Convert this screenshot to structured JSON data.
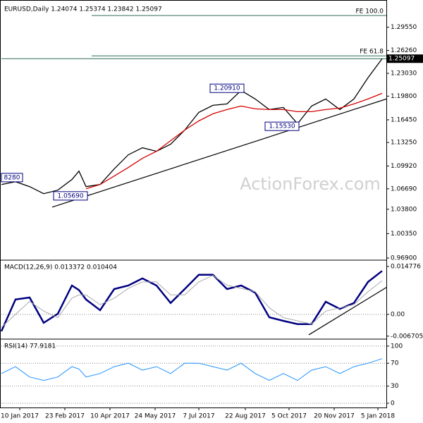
{
  "chart_data": [
    {
      "type": "line",
      "title": "EURUSD,Daily 1.24074 1.25374 1.23842 1.25097",
      "x": [
        0,
        10,
        20,
        30,
        40,
        50,
        55,
        60,
        70,
        80,
        90,
        100,
        110,
        120,
        130,
        140,
        150,
        160,
        170,
        180,
        190,
        200,
        210,
        220,
        230,
        240,
        250,
        260,
        270
      ],
      "xlim": [
        0,
        273
      ],
      "xticks": [
        {
          "value": 13,
          "label": "10 Jan 2017"
        },
        {
          "value": 45,
          "label": "23 Feb 2017"
        },
        {
          "value": 77,
          "label": "10 Apr 2017"
        },
        {
          "value": 109,
          "label": "24 May 2017"
        },
        {
          "value": 140,
          "label": "7 Jul 2017"
        },
        {
          "value": 173,
          "label": "22 Aug 2017"
        },
        {
          "value": 204,
          "label": "5 Oct 2017"
        },
        {
          "value": 236,
          "label": "20 Nov 2017"
        },
        {
          "value": 267,
          "label": "5 Jan 2018"
        }
      ],
      "series": [
        {
          "color": "#000000",
          "values": [
            1.073,
            1.077,
            1.07,
            1.06,
            1.065,
            1.08,
            1.092,
            1.07,
            1.073,
            1.095,
            1.115,
            1.125,
            1.12,
            1.13,
            1.15,
            1.175,
            1.185,
            1.187,
            1.206,
            1.194,
            1.179,
            1.182,
            1.159,
            1.184,
            1.194,
            1.179,
            1.194,
            1.224,
            1.251
          ]
        },
        {
          "color": "#d40000",
          "values": [
            null,
            null,
            null,
            null,
            null,
            null,
            null,
            1.067,
            1.073,
            1.085,
            1.097,
            1.11,
            1.12,
            1.135,
            1.15,
            1.163,
            1.173,
            1.179,
            1.184,
            1.18,
            1.179,
            1.179,
            1.176,
            1.176,
            1.179,
            1.181,
            1.187,
            1.194,
            1.202
          ]
        }
      ],
      "ylim": [
        0.967,
        1.33
      ],
      "yticks": [
        {
          "value": 1.2955,
          "label": "1.29550"
        },
        {
          "value": 1.2626,
          "label": "1.26260"
        },
        {
          "value": 1.2303,
          "label": "1.23030"
        },
        {
          "value": 1.198,
          "label": "1.19800"
        },
        {
          "value": 1.1645,
          "label": "1.16450"
        },
        {
          "value": 1.1325,
          "label": "1.13250"
        },
        {
          "value": 1.0992,
          "label": "1.09920"
        },
        {
          "value": 1.0669,
          "label": "1.06690"
        },
        {
          "value": 1.038,
          "label": "1.03800"
        },
        {
          "value": 1.0035,
          "label": "1.00350"
        },
        {
          "value": 0.969,
          "label": "0.96900"
        }
      ],
      "last_price": {
        "value": 1.25097,
        "label": "1.25097"
      },
      "levels": [
        {
          "text": "FE 100.0",
          "value": 1.312,
          "x": 64
        },
        {
          "text": "FE 61.8",
          "value": 1.255,
          "x": 64
        }
      ],
      "trendline": {
        "x": [
          36,
          273
        ],
        "y": [
          1.041,
          1.194
        ]
      },
      "annotations": [
        {
          "text": "8280",
          "x": 0,
          "y": 1.0828,
          "side": "right"
        },
        {
          "text": "1.05690",
          "x": 37,
          "y": 1.0569,
          "side": "right"
        },
        {
          "text": "1.20910",
          "x": 172,
          "y": 1.2091,
          "side": "left"
        },
        {
          "text": "1.15530",
          "x": 211,
          "y": 1.1553,
          "side": "left"
        }
      ],
      "watermark": "ActionForex.com"
    },
    {
      "type": "line",
      "title": "MACD(12,26,9) 0.013372 0.010404",
      "series": [
        {
          "color": "#000080",
          "width": 2.5,
          "values": [
            -0.0052,
            0.0046,
            0.0052,
            -0.0026,
            0.0002,
            0.0089,
            0.0075,
            0.0046,
            0.0013,
            0.0078,
            0.0089,
            0.0111,
            0.0089,
            0.0035,
            0.0078,
            0.0122,
            0.0122,
            0.0078,
            0.0089,
            0.0067,
            -0.0009,
            -0.002,
            -0.003,
            -0.003,
            0.0039,
            0.0017,
            0.0035,
            0.01,
            0.0134
          ]
        },
        {
          "color": "#aaaaaa",
          "width": 1,
          "values": [
            -0.004,
            0.0,
            0.004,
            0.001,
            -0.001,
            0.005,
            0.006,
            0.006,
            0.003,
            0.005,
            0.008,
            0.01,
            0.01,
            0.006,
            0.006,
            0.01,
            0.012,
            0.009,
            0.008,
            0.007,
            0.002,
            -0.001,
            -0.002,
            -0.003,
            0.001,
            0.002,
            0.003,
            0.007,
            0.0104
          ]
        }
      ],
      "ylim": [
        -0.0074,
        0.0165
      ],
      "yticks": [
        0.014776,
        {
          "value": 0,
          "label": "0.00"
        },
        -0.006705
      ],
      "trendline": {
        "x": [
          218,
          273
        ],
        "y": [
          -0.0063,
          0.0083
        ]
      }
    },
    {
      "type": "line",
      "title": "RSI(14) 77.9181",
      "series": [
        {
          "color": "#1e90ff",
          "width": 1,
          "values": [
            52,
            64,
            46,
            40,
            46,
            64,
            60,
            46,
            52,
            64,
            70,
            58,
            64,
            52,
            70,
            70,
            64,
            58,
            70,
            52,
            40,
            52,
            40,
            58,
            64,
            52,
            64,
            70,
            78
          ]
        }
      ],
      "ylim": [
        -7.4,
        111
      ],
      "yticks": [
        100,
        70,
        30,
        0
      ],
      "grid": true
    }
  ]
}
